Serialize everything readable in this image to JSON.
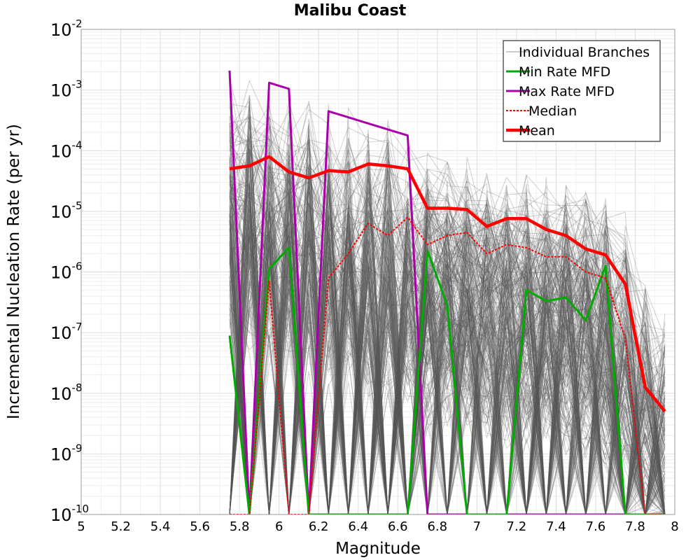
{
  "chart_data": {
    "type": "line",
    "title": "Malibu Coast",
    "xlabel": "Magnitude",
    "ylabel": "Incremental Nucleation Rate (per yr)",
    "xlim": [
      5,
      8
    ],
    "ylim_log10": [
      -10,
      -2
    ],
    "yscale": "log",
    "grid": true,
    "legend_position": "top-right",
    "x_ticks": [
      "5",
      "5.2",
      "5.4",
      "5.6",
      "5.8",
      "6",
      "6.2",
      "6.4",
      "6.6",
      "6.8",
      "7",
      "7.2",
      "7.4",
      "7.6",
      "7.8",
      "8"
    ],
    "y_tick_base": "10",
    "y_tick_exponents": [
      "-10",
      "-9",
      "-8",
      "-7",
      "-6",
      "-5",
      "-4",
      "-3",
      "-2"
    ],
    "x": [
      5.75,
      5.85,
      5.95,
      6.05,
      6.15,
      6.25,
      6.35,
      6.45,
      6.55,
      6.65,
      6.75,
      6.85,
      6.95,
      7.05,
      7.15,
      7.25,
      7.35,
      7.45,
      7.55,
      7.65,
      7.75,
      7.85,
      7.95
    ],
    "series": [
      {
        "name": "Individual Branches",
        "color": "#555555",
        "description_style": "many thin grey lines",
        "band_log10_low": [
          -10,
          -10,
          -10,
          -10,
          -10,
          -10,
          -10,
          -10,
          -10,
          -10,
          -10,
          -10,
          -10,
          -10,
          -10,
          -10,
          -10,
          -10,
          -10,
          -10,
          -10,
          -10,
          -10
        ],
        "band_log10_high": [
          -2.7,
          -2.7,
          -2.85,
          -2.9,
          -3.0,
          -3.15,
          -3.25,
          -3.4,
          -3.45,
          -3.55,
          -3.85,
          -3.95,
          -4.05,
          -4.1,
          -4.2,
          -4.3,
          -4.3,
          -4.35,
          -4.45,
          -4.6,
          -4.95,
          -5.9,
          -6.2
        ]
      },
      {
        "name": "Min Rate MFD",
        "color": "#00aa00",
        "values_log10": [
          -7.05,
          -10,
          -5.95,
          -5.6,
          -10,
          -10,
          -10,
          -10,
          -10,
          -10,
          -5.65,
          -6.55,
          -10,
          -10,
          -10,
          -6.3,
          -6.48,
          -6.42,
          -6.8,
          -5.9,
          -10,
          -10,
          -10
        ]
      },
      {
        "name": "Max Rate MFD",
        "color": "#aa00aa",
        "values_log10": [
          -2.68,
          -10,
          -2.88,
          -2.98,
          -10,
          -3.35,
          -3.45,
          -3.55,
          -3.65,
          -3.75,
          -10,
          -10,
          -10,
          -10,
          -10,
          -10,
          -10,
          -10,
          -10,
          -10,
          -10,
          -10,
          -10
        ]
      },
      {
        "name": "Median",
        "color": "#ff0000",
        "values_log10": [
          -10,
          -10,
          -6.15,
          -10,
          -10,
          -6.1,
          -5.7,
          -5.2,
          -5.4,
          -5.1,
          -5.55,
          -5.4,
          -5.35,
          -5.7,
          -5.55,
          -5.6,
          -5.75,
          -5.75,
          -6.0,
          -6.1,
          -7.1,
          -10,
          -10
        ]
      },
      {
        "name": "Mean",
        "color": "#ff0000",
        "values_log10": [
          -4.3,
          -4.25,
          -4.1,
          -4.35,
          -4.45,
          -4.33,
          -4.35,
          -4.22,
          -4.25,
          -4.3,
          -4.95,
          -4.95,
          -4.97,
          -5.25,
          -5.12,
          -5.12,
          -5.3,
          -5.4,
          -5.62,
          -5.72,
          -6.2,
          -7.9,
          -8.3
        ]
      }
    ]
  }
}
